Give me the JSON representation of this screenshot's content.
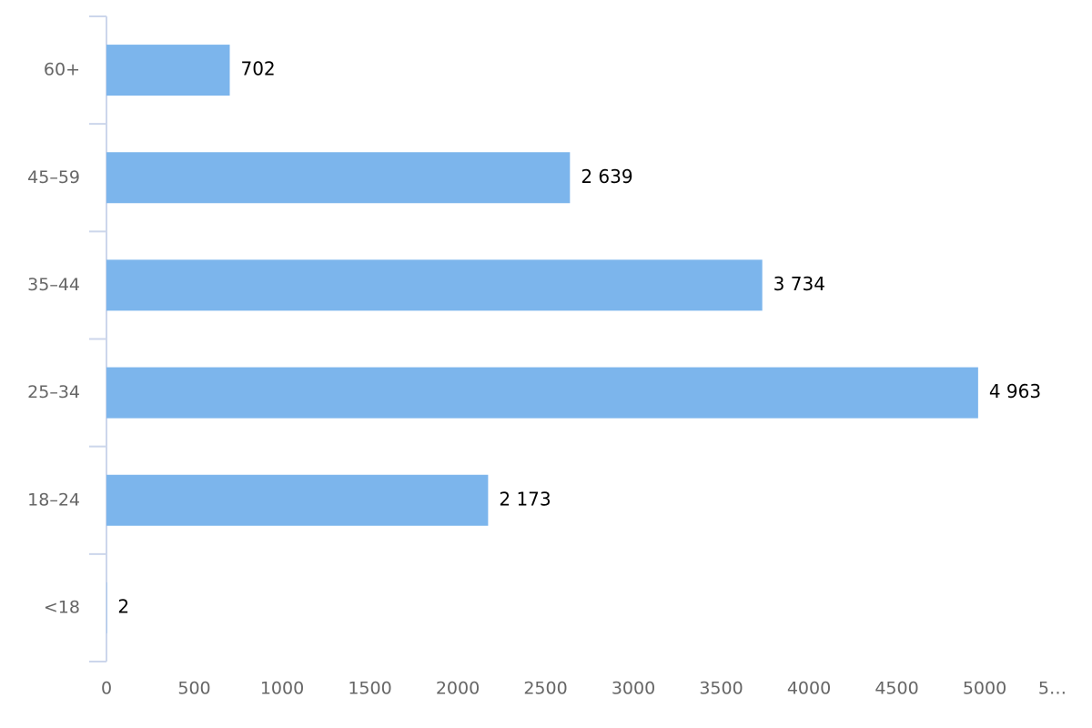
{
  "chart_data": {
    "type": "bar",
    "orientation": "horizontal",
    "categories": [
      "60+",
      "45–59",
      "35–44",
      "25–34",
      "18–24",
      "<18"
    ],
    "values": [
      702,
      2639,
      3734,
      4963,
      2173,
      2
    ],
    "value_labels": [
      "702",
      "2 639",
      "3 734",
      "4 963",
      "2 173",
      "2"
    ],
    "color": "#7cb5ec",
    "xlim": [
      0,
      5500
    ],
    "xticks": [
      0,
      500,
      1000,
      1500,
      2000,
      2500,
      3000,
      3500,
      4000,
      4500,
      5000,
      {
        "value": 5500,
        "label": "5…"
      }
    ],
    "grid": false
  }
}
